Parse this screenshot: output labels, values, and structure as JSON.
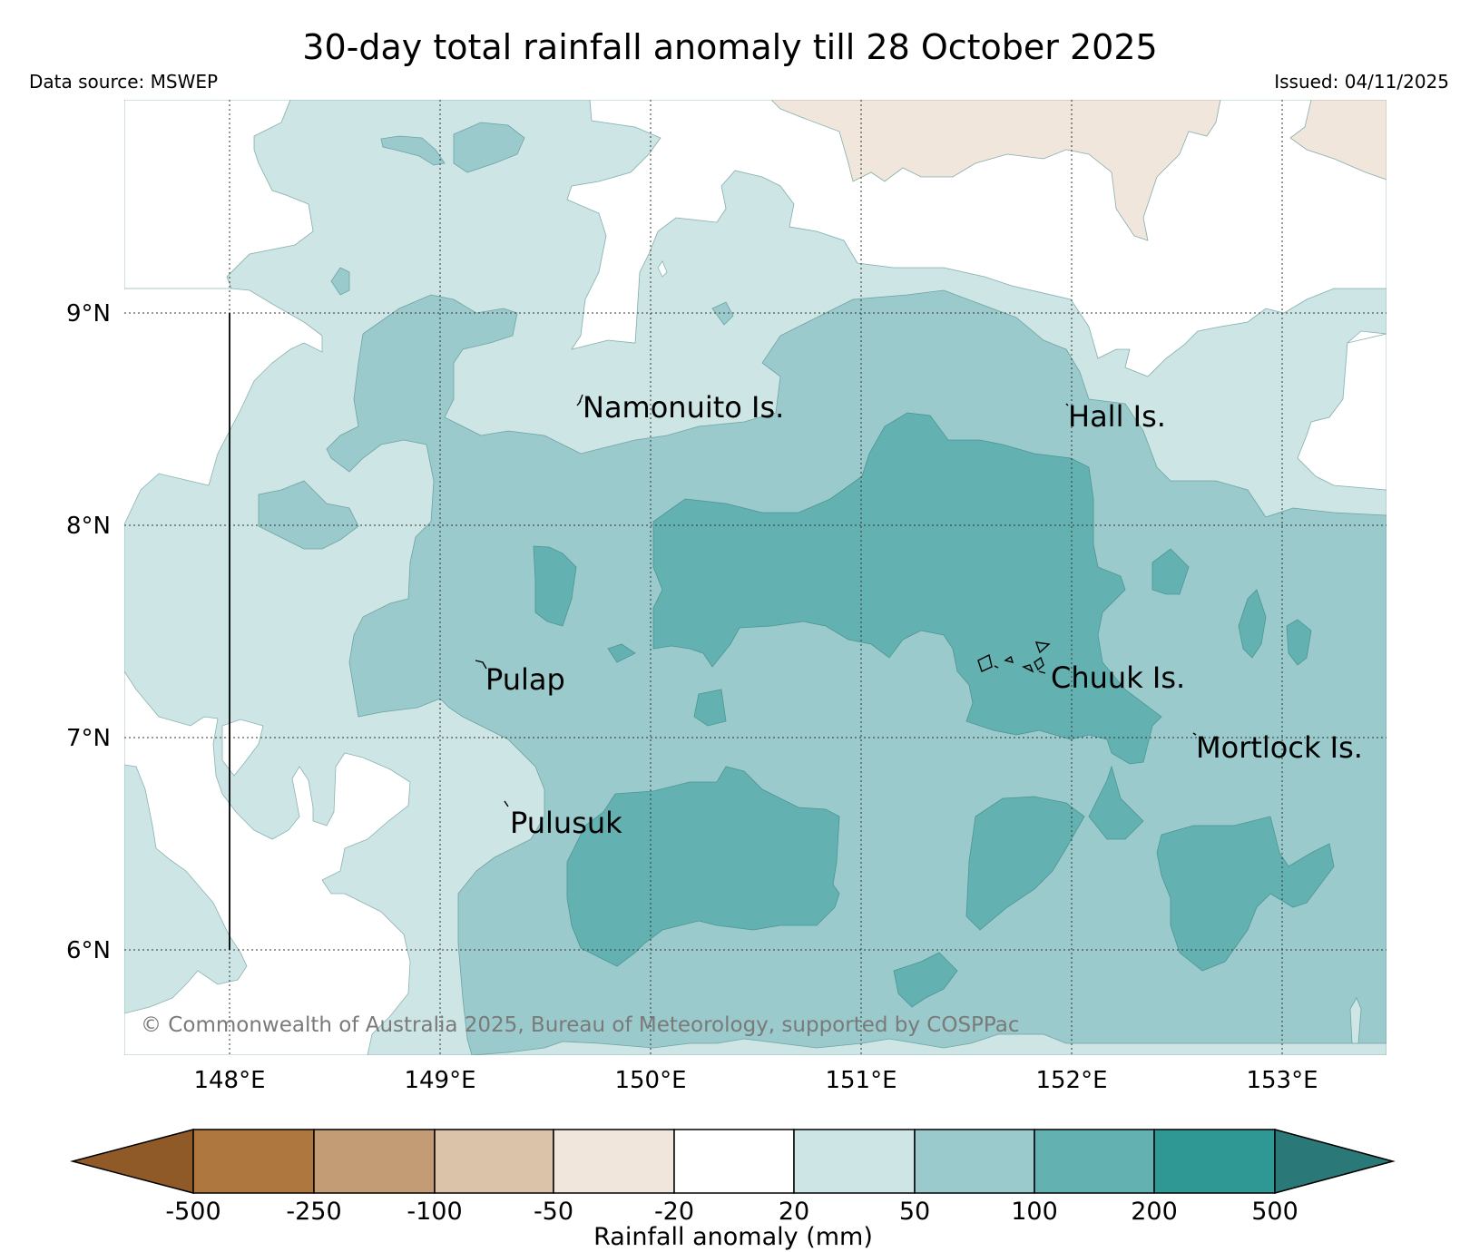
{
  "title": "30-day total rainfall anomaly till 28 October 2025",
  "data_source": "Data source: MSWEP",
  "issued": "Issued: 04/11/2025",
  "copyright": "© Commonwealth of Australia 2025, Bureau of Meteorology, supported by COSPPac",
  "latitude_labels": [
    "9°N",
    "8°N",
    "7°N",
    "6°N"
  ],
  "longitude_labels": [
    "148°E",
    "149°E",
    "150°E",
    "151°E",
    "152°E",
    "153°E"
  ],
  "places": [
    {
      "name": "Namonuito Is."
    },
    {
      "name": "Hall Is."
    },
    {
      "name": "Pulap"
    },
    {
      "name": "Chuuk Is."
    },
    {
      "name": "Mortlock Is."
    },
    {
      "name": "Pulusuk"
    }
  ],
  "colorbar": {
    "title": "Rainfall anomaly (mm)",
    "tick_labels": [
      "-500",
      "-250",
      "-100",
      "-50",
      "-20",
      "20",
      "50",
      "100",
      "200",
      "500"
    ],
    "colors": [
      "#8f5a28",
      "#ad773f",
      "#c39b74",
      "#dbc3aa",
      "#f0e6dc",
      "#ffffff",
      "#cde5e4",
      "#9acacb",
      "#64b1b2",
      "#2f9894",
      "#2a7878"
    ]
  },
  "legend_colors": {
    "dry_light": "#f0e6dc",
    "wet_20_50": "#cde5e4",
    "wet_50_100": "#9acacb",
    "wet_100_200": "#64b1b2"
  }
}
